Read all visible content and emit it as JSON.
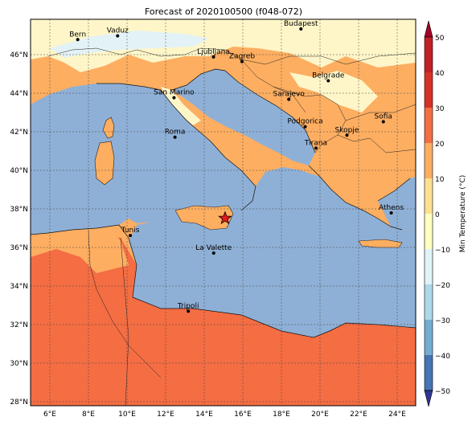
{
  "title": "Forecast of 2020100500 (f048-072)",
  "axes": {
    "lon_labels": [
      "6°E",
      "8°E",
      "10°E",
      "12°E",
      "14°E",
      "16°E",
      "18°E",
      "20°E",
      "22°E",
      "24°E"
    ],
    "lat_labels": [
      "46°N",
      "44°N",
      "42°N",
      "40°N",
      "38°N",
      "36°N",
      "34°N",
      "32°N",
      "30°N",
      "28°N"
    ],
    "lon_range": [
      5,
      25
    ],
    "lat_range": [
      28,
      48
    ],
    "gridlines": true
  },
  "colorbar": {
    "label": "Min Temperature (°C)",
    "ticks": [
      "50",
      "40",
      "30",
      "20",
      "10",
      "0",
      "−10",
      "−20",
      "−30",
      "−40",
      "−50"
    ],
    "colors": [
      "#a50026",
      "#c21f27",
      "#d73027",
      "#f46d43",
      "#fdae61",
      "#fee090",
      "#ffffbf",
      "#e0f3f8",
      "#abd9e9",
      "#74add1",
      "#4575b4",
      "#313695"
    ],
    "extend": "both"
  },
  "cities": [
    {
      "name": "Bern",
      "lon": 7.45,
      "lat": 46.95
    },
    {
      "name": "Vaduz",
      "lon": 9.52,
      "lat": 47.14
    },
    {
      "name": "Budapest",
      "lon": 19.04,
      "lat": 47.5
    },
    {
      "name": "Ljubljana",
      "lon": 14.5,
      "lat": 46.05
    },
    {
      "name": "Zagreb",
      "lon": 15.98,
      "lat": 45.81
    },
    {
      "name": "Belgrade",
      "lon": 20.46,
      "lat": 44.82
    },
    {
      "name": "San Marino",
      "lon": 12.45,
      "lat": 43.94
    },
    {
      "name": "Sarajevo",
      "lon": 18.41,
      "lat": 43.86
    },
    {
      "name": "Sofia",
      "lon": 23.32,
      "lat": 42.7
    },
    {
      "name": "Podgorica",
      "lon": 19.26,
      "lat": 42.44
    },
    {
      "name": "Skopje",
      "lon": 21.43,
      "lat": 42.0
    },
    {
      "name": "Roma",
      "lon": 12.5,
      "lat": 41.9
    },
    {
      "name": "Tirana",
      "lon": 19.82,
      "lat": 41.33
    },
    {
      "name": "Athens",
      "lon": 23.73,
      "lat": 37.98
    },
    {
      "name": "Tunis",
      "lon": 10.18,
      "lat": 36.81
    },
    {
      "name": "La Valette",
      "lon": 14.51,
      "lat": 35.9
    },
    {
      "name": "Tripoli",
      "lon": 13.19,
      "lat": 32.89
    }
  ],
  "marker": {
    "lon": 15.1,
    "lat": 37.7,
    "color": "#e31a1c"
  }
}
